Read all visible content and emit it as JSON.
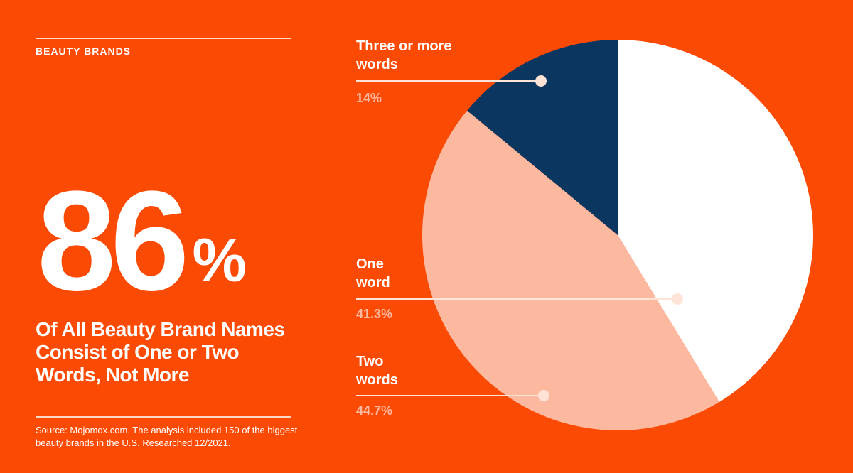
{
  "header": {
    "eyebrow": "BEAUTY BRANDS"
  },
  "hero": {
    "number": "86",
    "percent_sign": "%",
    "headline": "Of All Beauty Brand Names Consist of One or Two Words, Not More"
  },
  "footer": {
    "source": "Source: Mojomox.com. The analysis included 150 of the biggest beauty brands in the U.S. Researched 12/2021."
  },
  "colors": {
    "background": "#FB4A04",
    "one_word": "#FFFFFF",
    "two_words": "#FDB9A0",
    "three_or_more_words": "#0B3660",
    "leader": "#FFE3D6"
  },
  "chart_data": {
    "type": "pie",
    "title": "",
    "slices": [
      {
        "label": "One word",
        "value": 41.3,
        "display": "41.3%",
        "color": "#FFFFFF"
      },
      {
        "label": "Two words",
        "value": 44.7,
        "display": "44.7%",
        "color": "#FDB9A0"
      },
      {
        "label": "Three or more words",
        "value": 14,
        "display": "14%",
        "color": "#0B3660"
      }
    ],
    "start": "12 o'clock",
    "direction": "clockwise",
    "labels": [
      {
        "line1": "Three or more",
        "line2": "words",
        "value": "14%"
      },
      {
        "line1": "One",
        "line2": "word",
        "value": "41.3%"
      },
      {
        "line1": "Two",
        "line2": "words",
        "value": "44.7%"
      }
    ]
  }
}
